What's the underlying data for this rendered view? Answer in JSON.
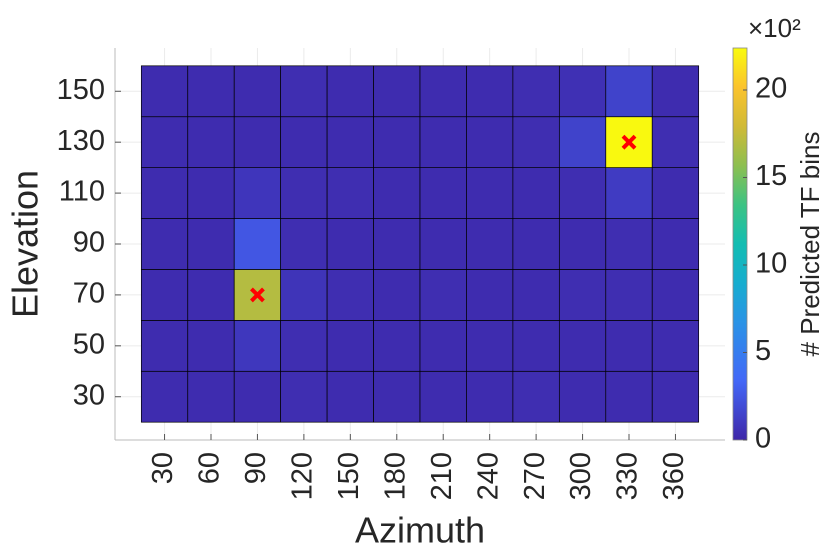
{
  "chart_data": {
    "type": "heatmap",
    "x_label": "Azimuth",
    "y_label": "Elevation",
    "x": [
      30,
      60,
      90,
      120,
      150,
      180,
      210,
      240,
      270,
      300,
      330,
      360
    ],
    "y": [
      30,
      50,
      70,
      90,
      110,
      130,
      150
    ],
    "values": [
      [
        0.3,
        0.3,
        0.3,
        0.4,
        0.3,
        0.3,
        0.3,
        0.3,
        0.4,
        0.3,
        0.3,
        0.3
      ],
      [
        0.3,
        0.3,
        0.9,
        0.4,
        0.3,
        0.3,
        0.3,
        0.3,
        0.3,
        0.3,
        0.3,
        0.3
      ],
      [
        0.3,
        0.3,
        17,
        0.7,
        0.4,
        0.3,
        0.4,
        0.3,
        0.3,
        0.4,
        0.4,
        0.3
      ],
      [
        0.3,
        0.3,
        2.5,
        0.4,
        0.3,
        0.3,
        0.3,
        0.3,
        0.3,
        0.3,
        0.4,
        0.3
      ],
      [
        0.3,
        0.3,
        0.8,
        0.4,
        0.4,
        0.3,
        0.3,
        0.3,
        0.3,
        0.4,
        1.1,
        0.3
      ],
      [
        0.3,
        0.3,
        0.3,
        0.3,
        0.3,
        0.3,
        0.3,
        0.3,
        0.4,
        1.5,
        22.3,
        0.4
      ],
      [
        0.3,
        0.3,
        0.3,
        0.4,
        0.3,
        0.3,
        0.3,
        0.3,
        0.4,
        0.5,
        1.5,
        0.3
      ]
    ],
    "markers": {
      "x": [
        90,
        330
      ],
      "y": [
        70,
        130
      ],
      "color": "#ff0000"
    },
    "xlim": [
      -2,
      392
    ],
    "ylim": [
      13,
      167
    ],
    "xticks": [
      30,
      60,
      90,
      120,
      150,
      180,
      210,
      240,
      270,
      300,
      330,
      360
    ],
    "yticks": [
      30,
      50,
      70,
      90,
      110,
      130,
      150
    ],
    "colormap": "parula",
    "colorbar_label": "# Predicted TF bins",
    "colorbar_exponent": "×10²",
    "clim": [
      0,
      22.4
    ],
    "colorbar_ticks": [
      0,
      5,
      10,
      15,
      20
    ],
    "grid": true
  }
}
